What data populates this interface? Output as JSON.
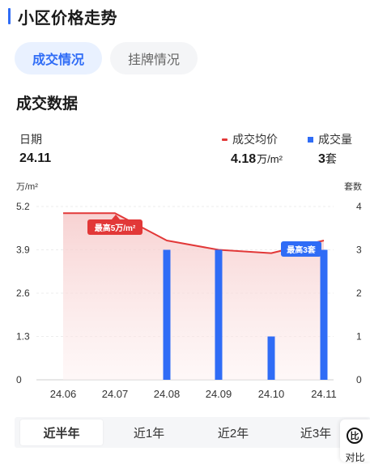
{
  "header": {
    "title": "小区价格走势"
  },
  "tabs": [
    {
      "label": "成交情况",
      "active": true
    },
    {
      "label": "挂牌情况",
      "active": false
    }
  ],
  "section": {
    "title": "成交数据"
  },
  "summary": {
    "date_label": "日期",
    "date_value": "24.11",
    "legend_price": "成交均价",
    "legend_volume": "成交量",
    "price_value": "4.18",
    "price_unit": "万/m²",
    "volume_value": "3",
    "volume_unit": "套"
  },
  "chart_data": {
    "type": "bar+line",
    "categories": [
      "24.06",
      "24.07",
      "24.08",
      "24.09",
      "24.10",
      "24.11"
    ],
    "left_axis": {
      "unit": "万/m²",
      "ticks": [
        "5.2",
        "3.9",
        "2.6",
        "1.3",
        "0"
      ],
      "range": [
        0,
        5.2
      ]
    },
    "right_axis": {
      "unit": "套数",
      "ticks": [
        "4",
        "3",
        "2",
        "1",
        "0"
      ],
      "range": [
        0,
        4
      ]
    },
    "series": [
      {
        "name": "成交均价",
        "kind": "line",
        "color": "#e23838",
        "values": [
          5.0,
          5.0,
          4.18,
          3.9,
          3.8,
          4.18
        ]
      },
      {
        "name": "成交量",
        "kind": "bar",
        "color": "#2f6cf6",
        "values": [
          0,
          0,
          3,
          3,
          1,
          3
        ]
      }
    ],
    "annotations": [
      {
        "text": "最高5万/m²",
        "series": "成交均价",
        "color": "#e23838"
      },
      {
        "text": "最高3套",
        "series": "成交量",
        "color": "#2f6cf6"
      }
    ]
  },
  "ranges": [
    {
      "label": "近半年",
      "active": true
    },
    {
      "label": "近1年",
      "active": false
    },
    {
      "label": "近2年",
      "active": false
    },
    {
      "label": "近3年",
      "active": false
    }
  ],
  "compare": {
    "icon_char": "比",
    "label": "对比"
  },
  "colors": {
    "accent": "#2f6cf6",
    "price": "#e23838",
    "volume": "#2f6cf6"
  }
}
